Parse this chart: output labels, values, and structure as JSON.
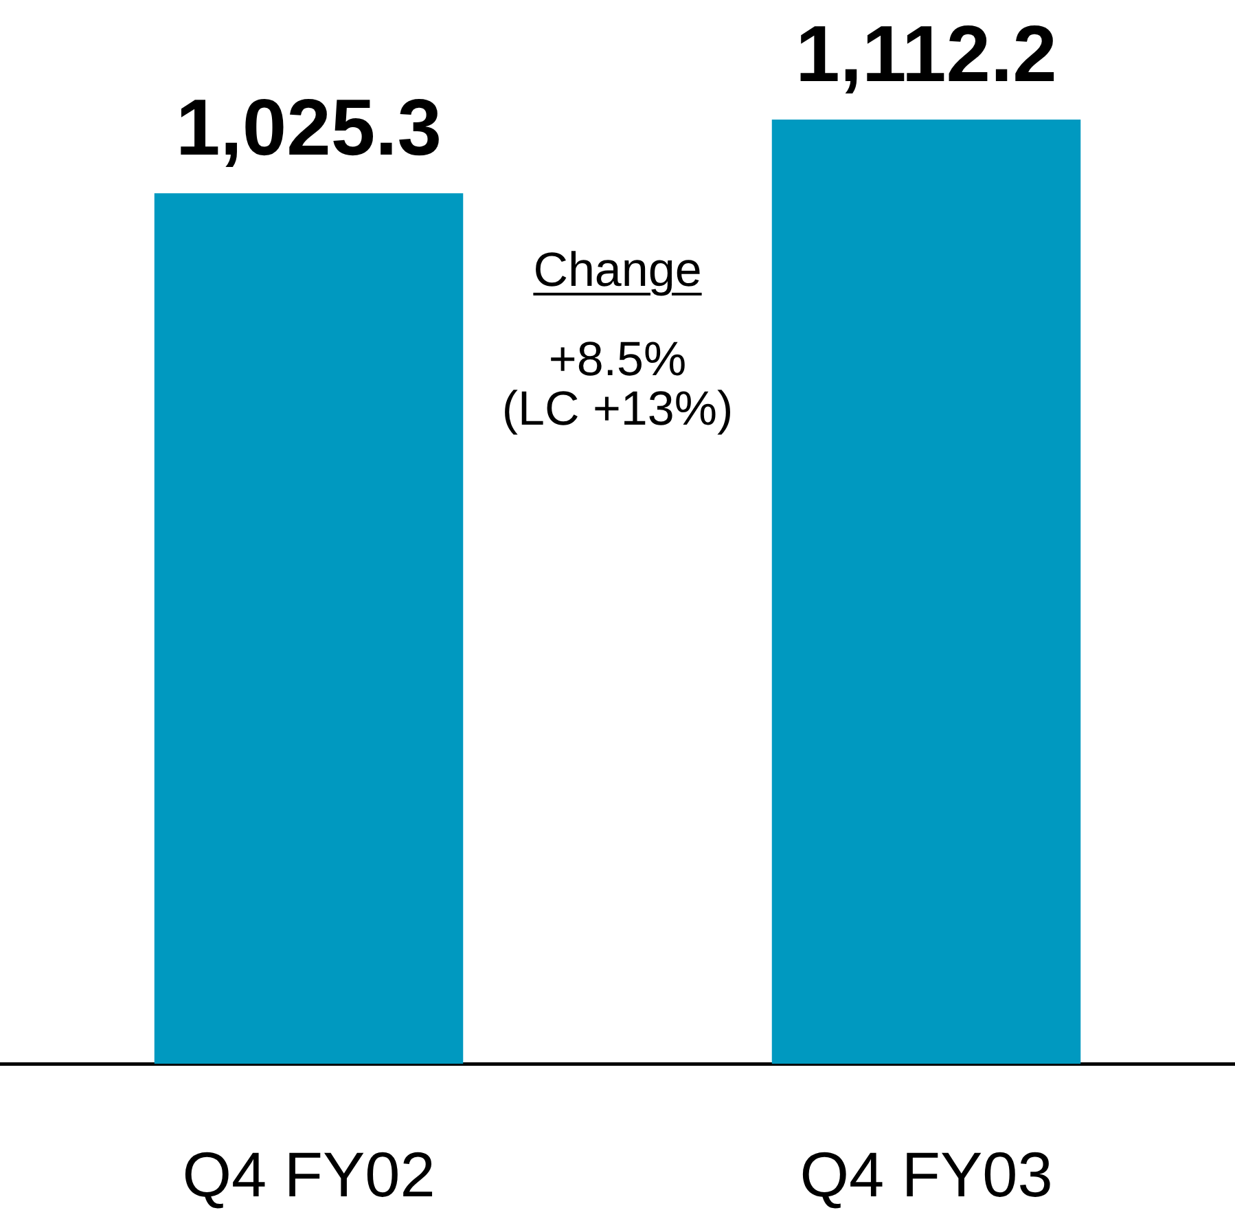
{
  "chart_data": {
    "type": "bar",
    "categories": [
      "Q4 FY02",
      "Q4 FY03"
    ],
    "values": [
      1025.3,
      1112.2
    ],
    "color": "#0099c0",
    "value_labels": [
      "1,025.3",
      "1,112.2"
    ],
    "annotations": [
      "Change",
      "+8.5%",
      "(LC +13%)"
    ]
  }
}
